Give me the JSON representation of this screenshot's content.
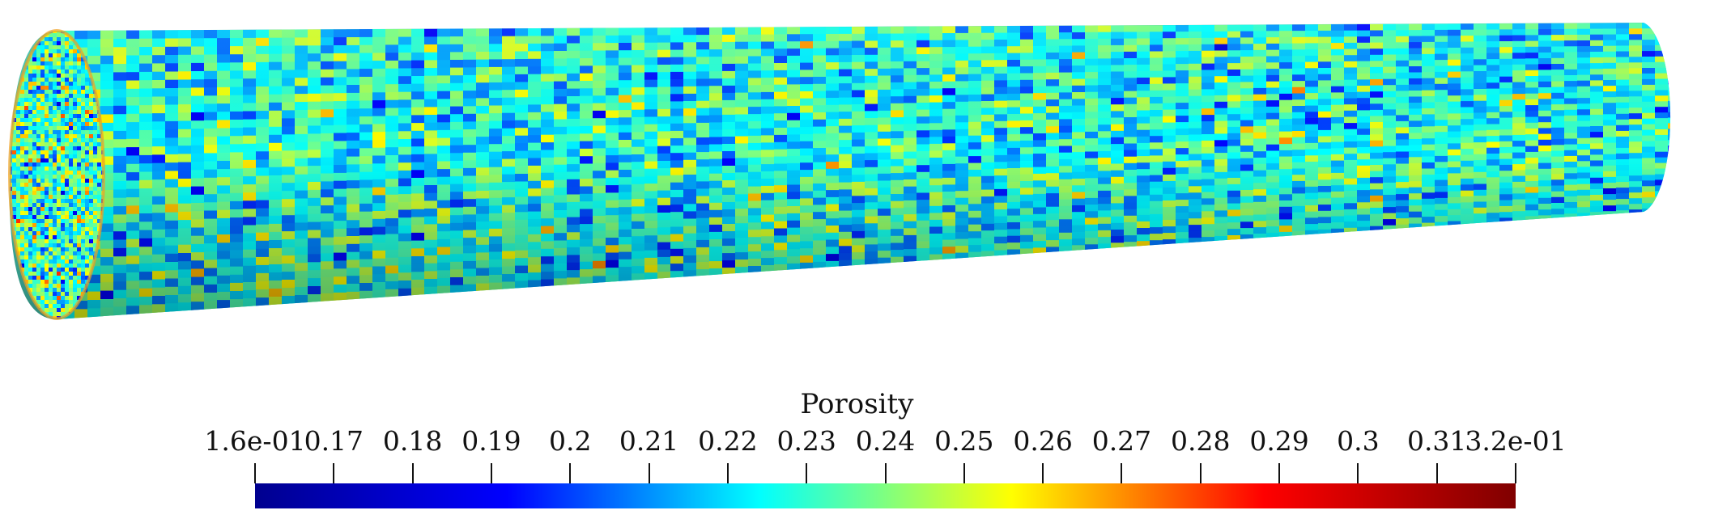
{
  "view": {
    "rendered_field": "Porosity"
  },
  "colorbar": {
    "title": "Porosity",
    "range": [
      0.16,
      0.32
    ],
    "tick_labels": [
      "1.6e-01",
      "0.17",
      "0.18",
      "0.19",
      "0.2",
      "0.21",
      "0.22",
      "0.23",
      "0.24",
      "0.25",
      "0.26",
      "0.27",
      "0.28",
      "0.29",
      "0.3",
      "0.31",
      "3.2e-01"
    ],
    "colormap": "jet",
    "colormap_stops": [
      "#00008f",
      "#0000ff",
      "#00ffff",
      "#ffff00",
      "#ff0000",
      "#800000"
    ]
  }
}
